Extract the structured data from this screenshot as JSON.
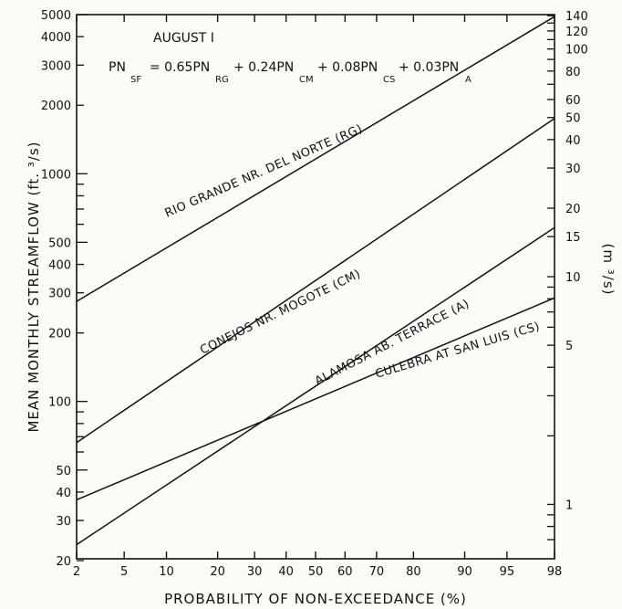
{
  "chart_data": {
    "type": "line",
    "title": "AUGUST I",
    "xlabel": "PROBABILITY OF NON-EXCEEDANCE (%)",
    "ylabel": "MEAN MONTHLY STREAMFLOW (ft. ³/s)",
    "ylabel_right": "(m ³/s)",
    "x_scale": "normal-probability",
    "y_scale": "log",
    "xlim": [
      2,
      98
    ],
    "ylim": [
      20,
      5000
    ],
    "grid": false,
    "x_ticks": [
      2,
      5,
      10,
      20,
      30,
      40,
      50,
      60,
      70,
      80,
      90,
      95,
      98
    ],
    "y_ticks": [
      20,
      30,
      40,
      50,
      100,
      200,
      300,
      400,
      500,
      1000,
      2000,
      3000,
      4000,
      5000
    ],
    "y_right_ticks": [
      1,
      5,
      10,
      15,
      20,
      30,
      40,
      50,
      60,
      80,
      100,
      120,
      140
    ],
    "equation": {
      "lhs": "PN",
      "lhs_sub": "SF",
      "terms": [
        {
          "text": "= 0.65PN",
          "sub": "RG"
        },
        {
          "text": "+ 0.24PN",
          "sub": "CM"
        },
        {
          "text": "+ 0.08PN",
          "sub": "CS"
        },
        {
          "text": "+ 0.03PN",
          "sub": "A"
        }
      ]
    },
    "series": [
      {
        "name": "RIO GRANDE NR. DEL NORTE (RG)",
        "x": [
          2,
          98
        ],
        "y": [
          275,
          4900
        ]
      },
      {
        "name": "CONEJOS NR. MOGOTE (CM)",
        "x": [
          2,
          98
        ],
        "y": [
          66,
          1750
        ]
      },
      {
        "name": "ALAMOSA AB. TERRACE (A)",
        "x": [
          2,
          98
        ],
        "y": [
          23.5,
          580
        ]
      },
      {
        "name": "CULEBRA AT SAN LUIS (CS)",
        "x": [
          2,
          98
        ],
        "y": [
          37,
          285
        ]
      }
    ]
  }
}
